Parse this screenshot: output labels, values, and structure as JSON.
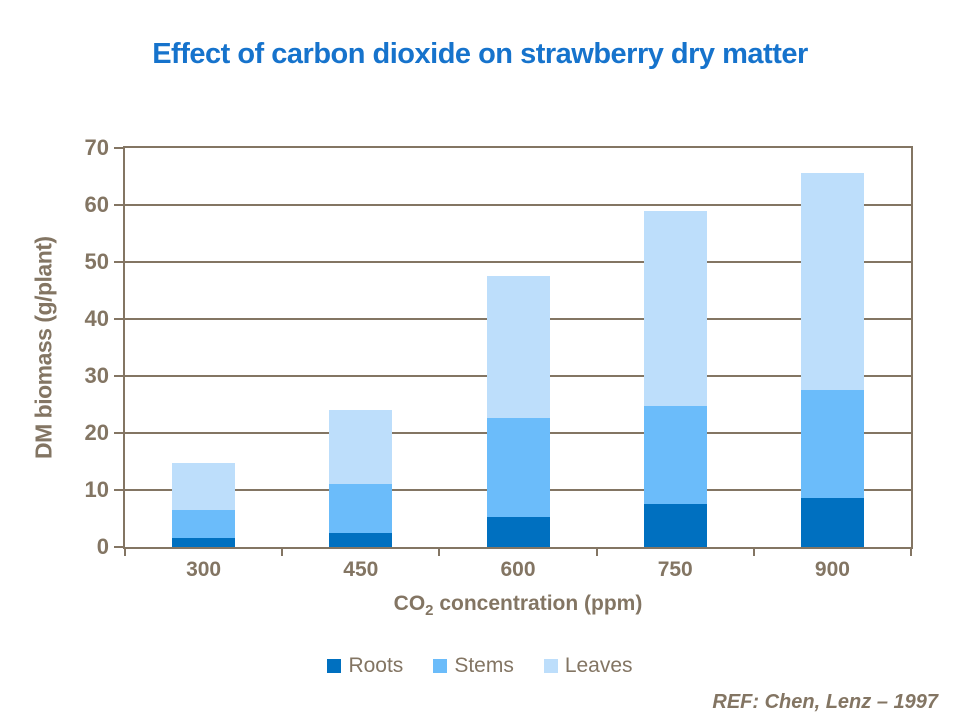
{
  "slide": {
    "title": "Effect of carbon dioxide on strawberry dry matter",
    "reference": "REF: Chen, Lenz – 1997"
  },
  "chart_data": {
    "type": "bar",
    "stacked": true,
    "title": "Effect of carbon dioxide on strawberry dry matter",
    "xlabel": "CO2 concentration (ppm)",
    "xlabel_parts": {
      "prefix": "CO",
      "sub": "2",
      "suffix": " concentration (ppm)"
    },
    "ylabel": "DM biomass (g/plant)",
    "categories": [
      "300",
      "450",
      "600",
      "750",
      "900"
    ],
    "series": [
      {
        "name": "Roots",
        "color": "#0070C0",
        "values": [
          1.5,
          2.5,
          5.2,
          7.5,
          8.6
        ]
      },
      {
        "name": "Stems",
        "color": "#6BBCFA",
        "values": [
          5.0,
          8.6,
          17.4,
          17.3,
          18.9
        ]
      },
      {
        "name": "Leaves",
        "color": "#BDDEFB",
        "values": [
          8.3,
          12.9,
          25.0,
          34.2,
          38.2
        ]
      }
    ],
    "stack_totals": [
      14.8,
      24.0,
      47.6,
      59.0,
      65.7
    ],
    "ylim": [
      0,
      70
    ],
    "yticks": [
      0,
      10,
      20,
      30,
      40,
      50,
      60,
      70
    ],
    "grid": "horizontal",
    "legend_position": "bottom",
    "colors": {
      "title": "#1673CC",
      "axis": "#837563",
      "background": "#FFFFFF"
    }
  }
}
